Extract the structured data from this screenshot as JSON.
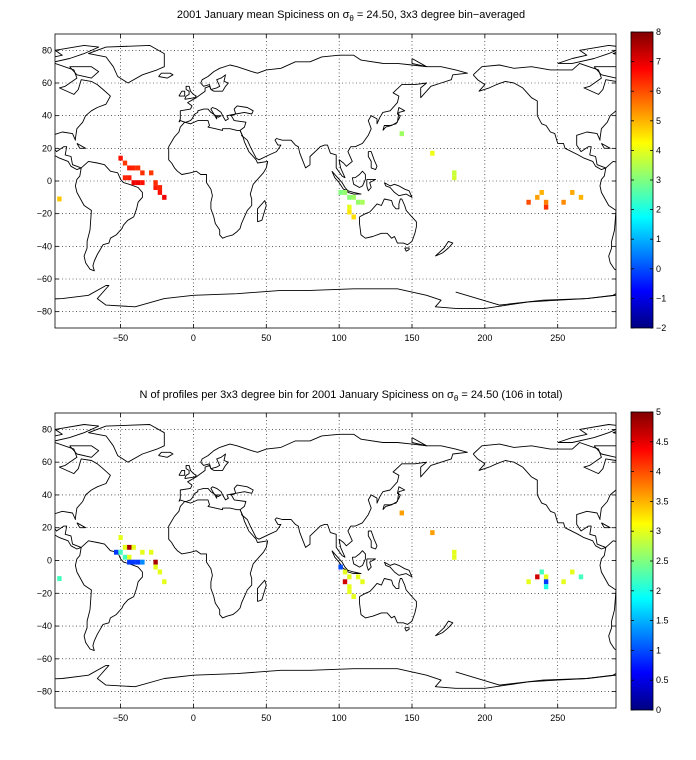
{
  "chart_data": [
    {
      "type": "heatmap",
      "title_prefix": "2001 January mean Spiciness on ",
      "title_sigma": "σ",
      "title_sub": "θ",
      "title_suffix": " = 24.50, 3x3 degree bin−averaged",
      "xticks": [
        "−50",
        "0",
        "50",
        "100",
        "150",
        "200",
        "250"
      ],
      "yticks": [
        "80",
        "60",
        "40",
        "20",
        "0",
        "−20",
        "−40",
        "−60",
        "−80"
      ],
      "xlim": [
        -95,
        290
      ],
      "ylim": [
        -90,
        90
      ],
      "colorbar": {
        "min": -2,
        "max": 8,
        "ticks": [
          "8",
          "7",
          "6",
          "5",
          "4",
          "3",
          "2",
          "1",
          "0",
          "−1",
          "−2"
        ]
      },
      "bins": [
        {
          "lon": -92,
          "lat": -11,
          "value": 4.8
        },
        {
          "lon": -50,
          "lat": 14,
          "value": 6.6
        },
        {
          "lon": -47,
          "lat": 11,
          "value": 6.2
        },
        {
          "lon": -44,
          "lat": 8,
          "value": 6.5
        },
        {
          "lon": -41,
          "lat": 8,
          "value": 6.4
        },
        {
          "lon": -38,
          "lat": 8,
          "value": 6.3
        },
        {
          "lon": -35,
          "lat": 5,
          "value": 6.3
        },
        {
          "lon": -29,
          "lat": 5,
          "value": 6.2
        },
        {
          "lon": -47,
          "lat": 2,
          "value": 6.4
        },
        {
          "lon": -44,
          "lat": 2,
          "value": 6.5
        },
        {
          "lon": -41,
          "lat": -1,
          "value": 6.9
        },
        {
          "lon": -38,
          "lat": -1,
          "value": 6.9
        },
        {
          "lon": -35,
          "lat": -1,
          "value": 6.6
        },
        {
          "lon": -26,
          "lat": -1,
          "value": 6.3
        },
        {
          "lon": -26,
          "lat": -4,
          "value": 6.5
        },
        {
          "lon": -23,
          "lat": -4,
          "value": 6.4
        },
        {
          "lon": -23,
          "lat": -7,
          "value": 6.6
        },
        {
          "lon": -20,
          "lat": -10,
          "value": 6.9
        },
        {
          "lon": 101,
          "lat": -7,
          "value": 3.0
        },
        {
          "lon": 104,
          "lat": -7,
          "value": 3.2
        },
        {
          "lon": 107,
          "lat": -10,
          "value": 3.1
        },
        {
          "lon": 110,
          "lat": -10,
          "value": 3.3
        },
        {
          "lon": 113,
          "lat": -13,
          "value": 3.2
        },
        {
          "lon": 116,
          "lat": -13,
          "value": 3.4
        },
        {
          "lon": 107,
          "lat": -16,
          "value": 4.0
        },
        {
          "lon": 107,
          "lat": -19,
          "value": 4.5
        },
        {
          "lon": 110,
          "lat": -22,
          "value": 4.6
        },
        {
          "lon": 143,
          "lat": 29,
          "value": 3.3
        },
        {
          "lon": 164,
          "lat": 17,
          "value": 4.1
        },
        {
          "lon": 179,
          "lat": 5,
          "value": 3.7
        },
        {
          "lon": 179,
          "lat": 2,
          "value": 3.8
        },
        {
          "lon": 230,
          "lat": -13,
          "value": 6.0
        },
        {
          "lon": 236,
          "lat": -10,
          "value": 5.2
        },
        {
          "lon": 239,
          "lat": -7,
          "value": 5.0
        },
        {
          "lon": 242,
          "lat": -13,
          "value": 5.5
        },
        {
          "lon": 242,
          "lat": -16,
          "value": 6.3
        },
        {
          "lon": 254,
          "lat": -13,
          "value": 5.4
        },
        {
          "lon": 260,
          "lat": -7,
          "value": 5.1
        },
        {
          "lon": 266,
          "lat": -10,
          "value": 5.0
        }
      ]
    },
    {
      "type": "heatmap",
      "title_prefix": "N of profiles per 3x3 degree bin for 2001 January Spiciness on ",
      "title_sigma": "σ",
      "title_sub": "θ",
      "title_suffix": " = 24.50 (106 in total)",
      "xticks": [
        "−50",
        "0",
        "50",
        "100",
        "150",
        "200",
        "250"
      ],
      "yticks": [
        "80",
        "60",
        "40",
        "20",
        "0",
        "−20",
        "−40",
        "−60",
        "−80"
      ],
      "xlim": [
        -95,
        290
      ],
      "ylim": [
        -90,
        90
      ],
      "colorbar": {
        "min": 0,
        "max": 5,
        "ticks": [
          "5",
          "4.5",
          "4",
          "3.5",
          "3",
          "2.5",
          "2",
          "1.5",
          "1",
          "0.5",
          "0"
        ]
      },
      "bins": [
        {
          "lon": -92,
          "lat": -11,
          "value": 2.2
        },
        {
          "lon": -50,
          "lat": 14,
          "value": 3.0
        },
        {
          "lon": -53,
          "lat": 5,
          "value": 0.9
        },
        {
          "lon": -50,
          "lat": 5,
          "value": 2.2
        },
        {
          "lon": -47,
          "lat": 8,
          "value": 3.0
        },
        {
          "lon": -44,
          "lat": 8,
          "value": 4.8
        },
        {
          "lon": -41,
          "lat": 8,
          "value": 3.0
        },
        {
          "lon": -35,
          "lat": 5,
          "value": 3.0
        },
        {
          "lon": -29,
          "lat": 5,
          "value": 3.0
        },
        {
          "lon": -47,
          "lat": 2,
          "value": 2.2
        },
        {
          "lon": -44,
          "lat": 2,
          "value": 3.0
        },
        {
          "lon": -44,
          "lat": -1,
          "value": 0.9
        },
        {
          "lon": -41,
          "lat": -1,
          "value": 0.9
        },
        {
          "lon": -38,
          "lat": -1,
          "value": 0.9
        },
        {
          "lon": -35,
          "lat": -1,
          "value": 1.3
        },
        {
          "lon": -26,
          "lat": -1,
          "value": 4.8
        },
        {
          "lon": -26,
          "lat": -4,
          "value": 3.0
        },
        {
          "lon": -23,
          "lat": -7,
          "value": 3.0
        },
        {
          "lon": -20,
          "lat": -13,
          "value": 3.0
        },
        {
          "lon": 101,
          "lat": -4,
          "value": 1.0
        },
        {
          "lon": 104,
          "lat": -7,
          "value": 3.0
        },
        {
          "lon": 104,
          "lat": -13,
          "value": 4.6
        },
        {
          "lon": 107,
          "lat": -10,
          "value": 3.0
        },
        {
          "lon": 113,
          "lat": -10,
          "value": 3.0
        },
        {
          "lon": 116,
          "lat": -13,
          "value": 3.0
        },
        {
          "lon": 107,
          "lat": -16,
          "value": 3.0
        },
        {
          "lon": 107,
          "lat": -19,
          "value": 3.0
        },
        {
          "lon": 110,
          "lat": -22,
          "value": 3.0
        },
        {
          "lon": 143,
          "lat": 29,
          "value": 3.6
        },
        {
          "lon": 164,
          "lat": 17,
          "value": 3.6
        },
        {
          "lon": 179,
          "lat": 5,
          "value": 3.0
        },
        {
          "lon": 179,
          "lat": 2,
          "value": 3.0
        },
        {
          "lon": 230,
          "lat": -13,
          "value": 3.0
        },
        {
          "lon": 236,
          "lat": -10,
          "value": 4.6
        },
        {
          "lon": 239,
          "lat": -7,
          "value": 2.2
        },
        {
          "lon": 242,
          "lat": -10,
          "value": 3.0
        },
        {
          "lon": 242,
          "lat": -13,
          "value": 0.9
        },
        {
          "lon": 242,
          "lat": -16,
          "value": 2.0
        },
        {
          "lon": 254,
          "lat": -13,
          "value": 3.0
        },
        {
          "lon": 260,
          "lat": -7,
          "value": 3.0
        },
        {
          "lon": 266,
          "lat": -10,
          "value": 2.2
        }
      ]
    }
  ]
}
